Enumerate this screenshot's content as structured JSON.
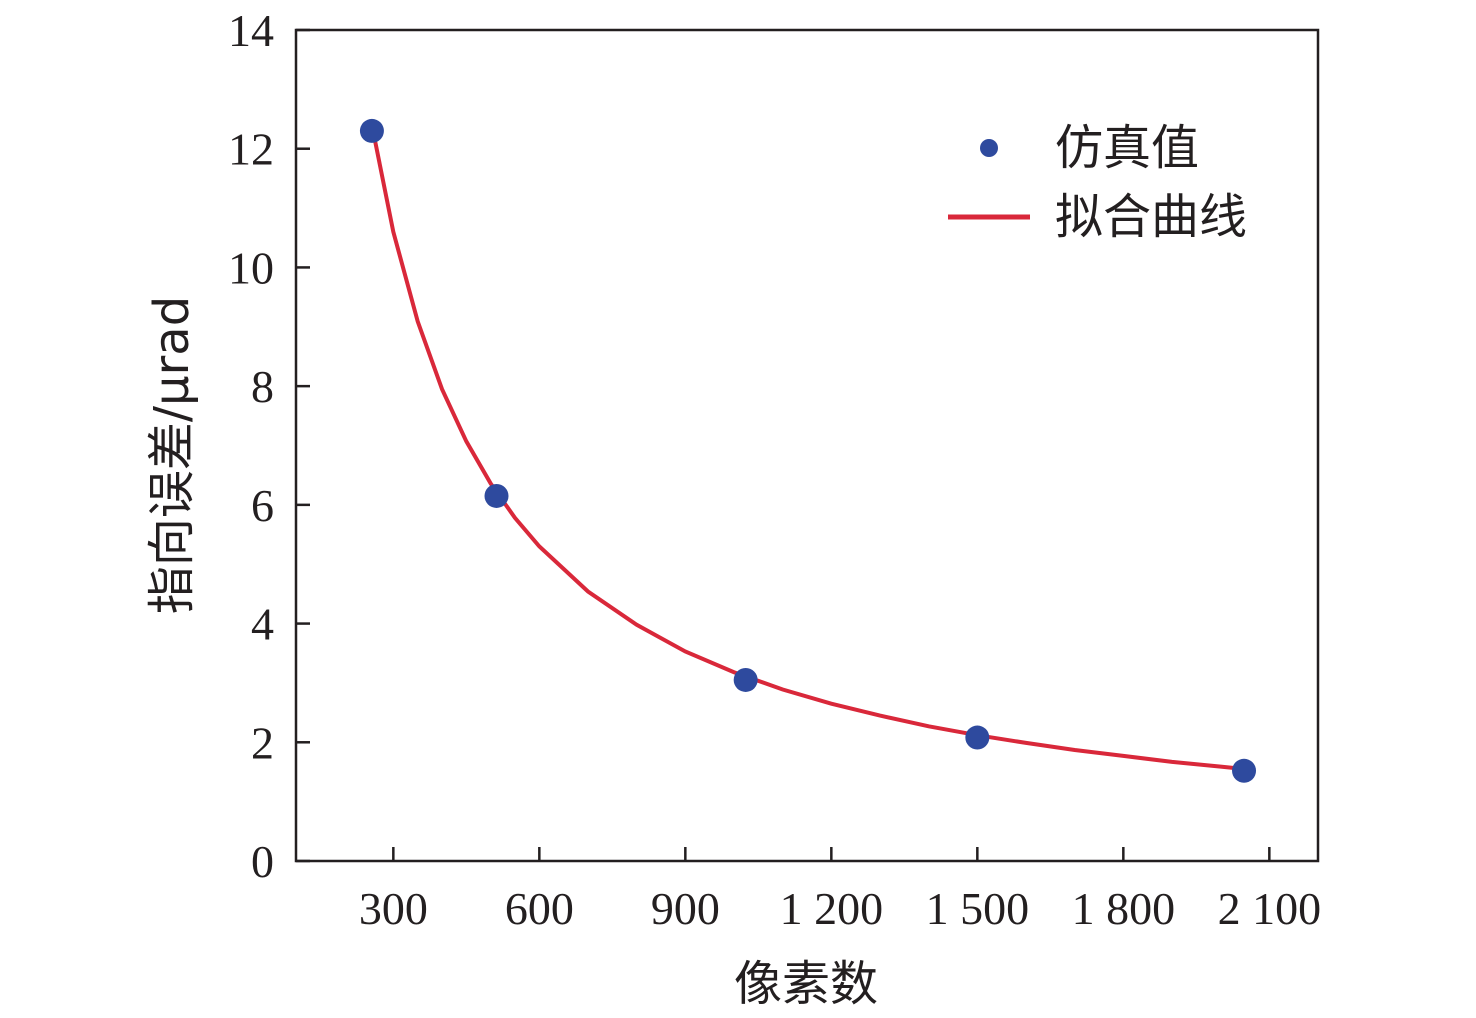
{
  "chart_data": {
    "type": "scatter",
    "xlabel": "像素数",
    "ylabel": "指向误差/μrad",
    "xlim": [
      100,
      2200
    ],
    "ylim": [
      0,
      14
    ],
    "xticks": [
      300,
      600,
      900,
      1200,
      1500,
      1800,
      2100
    ],
    "xtick_labels": [
      "300",
      "600",
      "900",
      "1 200",
      "1 500",
      "1 800",
      "2 100"
    ],
    "yticks": [
      0,
      2,
      4,
      6,
      8,
      10,
      12,
      14
    ],
    "ytick_labels": [
      "0",
      "2",
      "4",
      "6",
      "8",
      "10",
      "12",
      "14"
    ],
    "legend_position": "top-right",
    "grid": false,
    "series": [
      {
        "name": "仿真值",
        "kind": "scatter",
        "color": "#2e4a9e",
        "x": [
          256,
          512,
          1024,
          1500,
          2048
        ],
        "y": [
          12.3,
          6.15,
          3.05,
          2.08,
          1.52
        ]
      },
      {
        "name": "拟合曲线",
        "kind": "line",
        "color": "#d9283a",
        "x": [
          260,
          300,
          350,
          400,
          450,
          500,
          550,
          600,
          700,
          800,
          900,
          1000,
          1100,
          1200,
          1300,
          1400,
          1500,
          1600,
          1700,
          1800,
          1900,
          2000,
          2048
        ],
        "y": [
          12.23,
          10.6,
          9.09,
          7.95,
          7.07,
          6.36,
          5.78,
          5.3,
          4.54,
          3.98,
          3.53,
          3.18,
          2.89,
          2.65,
          2.45,
          2.27,
          2.12,
          1.99,
          1.87,
          1.77,
          1.67,
          1.59,
          1.55
        ]
      }
    ]
  }
}
